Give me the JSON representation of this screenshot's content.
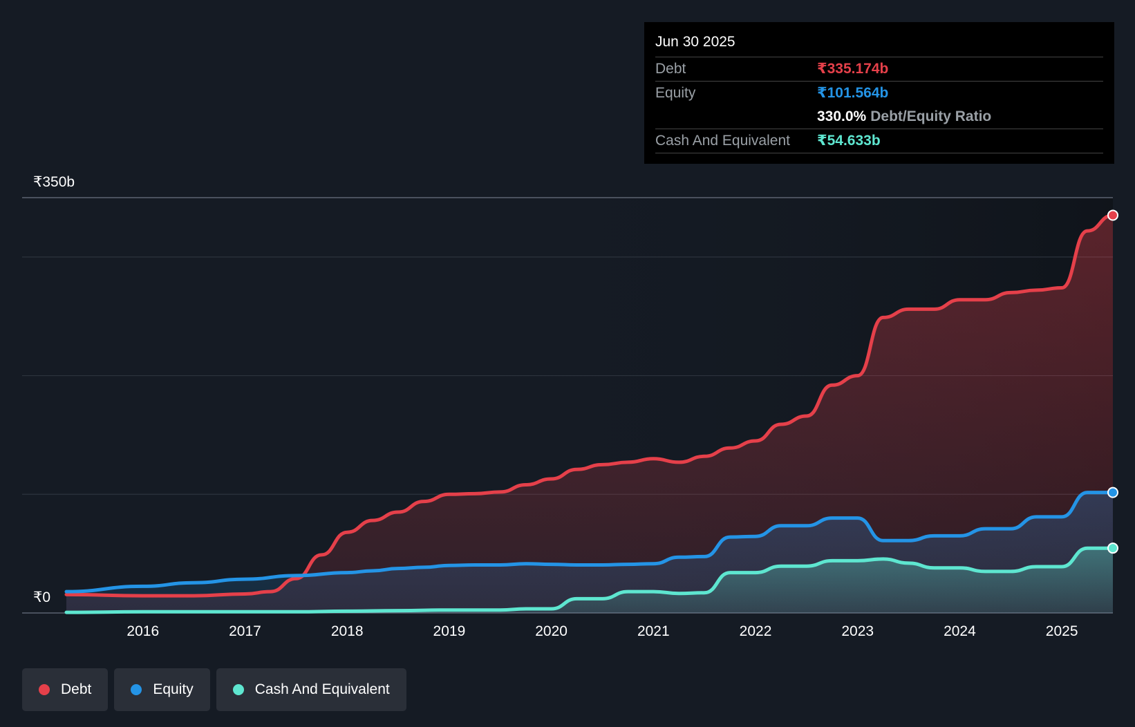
{
  "colors": {
    "debt": "#e5404a",
    "equity": "#2494e6",
    "cash": "#5ee6d0",
    "grid": "#2c333d",
    "axis": "#6b7280"
  },
  "tooltip": {
    "date": "Jun 30 2025",
    "debt_label": "Debt",
    "debt_value": "₹335.174b",
    "equity_label": "Equity",
    "equity_value": "₹101.564b",
    "ratio_value": "330.0%",
    "ratio_label": "Debt/Equity Ratio",
    "cash_label": "Cash And Equivalent",
    "cash_value": "₹54.633b"
  },
  "legend": [
    {
      "label": "Debt",
      "color_key": "debt"
    },
    {
      "label": "Equity",
      "color_key": "equity"
    },
    {
      "label": "Cash And Equivalent",
      "color_key": "cash"
    }
  ],
  "chart_data": {
    "type": "area",
    "title": "",
    "xlabel": "",
    "ylabel": "",
    "ylim": [
      0,
      350
    ],
    "y_tick_labels": [
      {
        "value": 350,
        "label": "₹350b"
      },
      {
        "value": 0,
        "label": "₹0"
      }
    ],
    "gridlines": [
      350,
      300,
      200,
      100,
      0
    ],
    "x_ticks": [
      2016,
      2017,
      2018,
      2019,
      2020,
      2021,
      2022,
      2023,
      2024,
      2025
    ],
    "xlim": [
      2015.25,
      2025.5
    ],
    "series": [
      {
        "name": "Debt",
        "color_key": "debt",
        "x": [
          2015.25,
          2016.0,
          2016.5,
          2017.0,
          2017.25,
          2017.5,
          2017.75,
          2018.0,
          2018.25,
          2018.5,
          2018.75,
          2019.0,
          2019.25,
          2019.5,
          2019.75,
          2020.0,
          2020.25,
          2020.5,
          2020.75,
          2021.0,
          2021.25,
          2021.5,
          2021.75,
          2022.0,
          2022.25,
          2022.5,
          2022.75,
          2023.0,
          2023.25,
          2023.5,
          2023.75,
          2024.0,
          2024.25,
          2024.5,
          2024.75,
          2025.0,
          2025.25,
          2025.5
        ],
        "values": [
          15.5,
          14.5,
          14.5,
          16.0,
          18.0,
          29.0,
          49.0,
          68.0,
          78.0,
          85.0,
          94.0,
          100.0,
          100.5,
          102.0,
          108.0,
          113.0,
          121.0,
          125.0,
          127.0,
          130.0,
          127.0,
          132.0,
          139.0,
          145.0,
          159.0,
          166.0,
          192.0,
          200.0,
          249.0,
          256.0,
          256.0,
          264.0,
          264.0,
          270.0,
          272.0,
          274.0,
          322.0,
          335.174
        ]
      },
      {
        "name": "Equity",
        "color_key": "equity",
        "x": [
          2015.25,
          2016.0,
          2016.5,
          2017.0,
          2017.5,
          2018.0,
          2018.25,
          2018.5,
          2018.75,
          2019.0,
          2019.25,
          2019.5,
          2019.75,
          2020.0,
          2020.25,
          2020.5,
          2020.75,
          2021.0,
          2021.25,
          2021.5,
          2021.75,
          2022.0,
          2022.25,
          2022.5,
          2022.75,
          2023.0,
          2023.25,
          2023.5,
          2023.75,
          2024.0,
          2024.25,
          2024.5,
          2024.75,
          2025.0,
          2025.25,
          2025.5
        ],
        "values": [
          18.0,
          22.5,
          25.5,
          28.5,
          31.5,
          34.0,
          35.5,
          37.5,
          38.5,
          40.0,
          40.5,
          40.5,
          41.5,
          41.0,
          40.5,
          40.5,
          41.0,
          41.5,
          47.0,
          47.5,
          64.0,
          64.5,
          73.5,
          73.5,
          80.0,
          80.0,
          61.0,
          61.0,
          65.0,
          65.0,
          71.0,
          71.0,
          81.0,
          81.0,
          101.564,
          101.564
        ]
      },
      {
        "name": "Cash And Equivalent",
        "color_key": "cash",
        "x": [
          2015.25,
          2016.0,
          2016.5,
          2017.0,
          2017.5,
          2018.0,
          2018.5,
          2019.0,
          2019.5,
          2019.75,
          2020.0,
          2020.25,
          2020.5,
          2020.75,
          2021.0,
          2021.25,
          2021.5,
          2021.75,
          2022.0,
          2022.25,
          2022.5,
          2022.75,
          2023.0,
          2023.25,
          2023.5,
          2023.75,
          2024.0,
          2024.25,
          2024.5,
          2024.75,
          2025.0,
          2025.25,
          2025.5
        ],
        "values": [
          0.5,
          1.0,
          1.0,
          1.0,
          1.0,
          1.5,
          2.0,
          2.5,
          2.5,
          3.5,
          3.5,
          12.0,
          12.0,
          18.0,
          18.0,
          16.5,
          17.0,
          34.0,
          34.0,
          39.5,
          39.5,
          44.0,
          44.0,
          45.5,
          42.0,
          38.0,
          38.0,
          35.0,
          35.0,
          39.0,
          39.0,
          54.633,
          54.633
        ]
      }
    ]
  }
}
